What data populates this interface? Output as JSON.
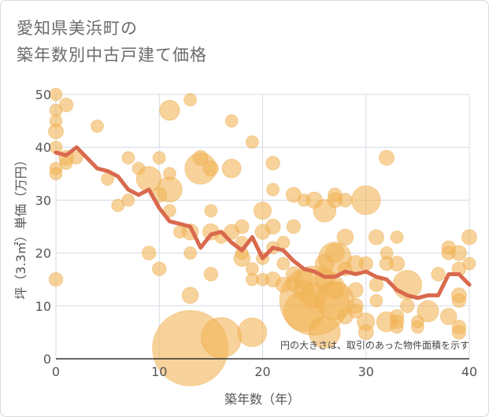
{
  "title_lines": [
    "愛知県美浜町の",
    "築年数別中古戸建て価格"
  ],
  "chart_data": {
    "type": "scatter",
    "xlabel": "築年数（年）",
    "ylabel": "坪（3.3㎡）単価（万円）",
    "xlim": [
      0,
      40
    ],
    "ylim": [
      0,
      50
    ],
    "xticks": [
      0,
      10,
      20,
      30,
      40
    ],
    "yticks": [
      0,
      10,
      20,
      30,
      40,
      50
    ],
    "grid": true,
    "annotation": "円の大きさは、取引のあった物件面積を示す",
    "colors": {
      "bubble": "#f2b457",
      "line": "#d9694d",
      "grid": "#d5dbe6"
    },
    "bubbles": [
      [
        0,
        50,
        1
      ],
      [
        0,
        47,
        1
      ],
      [
        0,
        45,
        1
      ],
      [
        0,
        43,
        1.2
      ],
      [
        0,
        40,
        1
      ],
      [
        0,
        36,
        1
      ],
      [
        0,
        35,
        1
      ],
      [
        0,
        15,
        1.1
      ],
      [
        1,
        48,
        1.1
      ],
      [
        1,
        38,
        1.2
      ],
      [
        1,
        37,
        1
      ],
      [
        2,
        38,
        1
      ],
      [
        4,
        44,
        1
      ],
      [
        5,
        34,
        1
      ],
      [
        6,
        29,
        1
      ],
      [
        7,
        30,
        1
      ],
      [
        7,
        38,
        1
      ],
      [
        8,
        36,
        1
      ],
      [
        9,
        34,
        2
      ],
      [
        9,
        20,
        1.1
      ],
      [
        10,
        38,
        1
      ],
      [
        10,
        31,
        1.2
      ],
      [
        10,
        17,
        1.1
      ],
      [
        11,
        47,
        1.6
      ],
      [
        11,
        35,
        1
      ],
      [
        11,
        32,
        2
      ],
      [
        11,
        28,
        1
      ],
      [
        12,
        24,
        1
      ],
      [
        13,
        49,
        1
      ],
      [
        13,
        24,
        1.3
      ],
      [
        13,
        20,
        1
      ],
      [
        13,
        12,
        1.3
      ],
      [
        13,
        2,
        6
      ],
      [
        14,
        36,
        2.5
      ],
      [
        14,
        38,
        1.2
      ],
      [
        15,
        36,
        1.2
      ],
      [
        15,
        28,
        1
      ],
      [
        15,
        24,
        1.3
      ],
      [
        15,
        16,
        1.1
      ],
      [
        16,
        4,
        3.2
      ],
      [
        16,
        23,
        1
      ],
      [
        17,
        45,
        1
      ],
      [
        17,
        36,
        1.5
      ],
      [
        17,
        24,
        1.2
      ],
      [
        18,
        19,
        1.3
      ],
      [
        18,
        22,
        1
      ],
      [
        18,
        20,
        1
      ],
      [
        18,
        25,
        1.1
      ],
      [
        19,
        41,
        1
      ],
      [
        19,
        15,
        1
      ],
      [
        19,
        17,
        1
      ],
      [
        19,
        5,
        2.3
      ],
      [
        20,
        28,
        1.4
      ],
      [
        20,
        24,
        1.2
      ],
      [
        20,
        19,
        1
      ],
      [
        20,
        15,
        1
      ],
      [
        21,
        37,
        1.1
      ],
      [
        21,
        32,
        1
      ],
      [
        21,
        25,
        1.2
      ],
      [
        21,
        21,
        1
      ],
      [
        21,
        15,
        1.2
      ],
      [
        22,
        22,
        1
      ],
      [
        22,
        18,
        1
      ],
      [
        22,
        14,
        1.2
      ],
      [
        23,
        31,
        1.2
      ],
      [
        23,
        25,
        1.1
      ],
      [
        23,
        16,
        1.2
      ],
      [
        23,
        14,
        1.1
      ],
      [
        24,
        30,
        1
      ],
      [
        24,
        15,
        1.5
      ],
      [
        24,
        13,
        1.6
      ],
      [
        24,
        9,
        3.2
      ],
      [
        25,
        11,
        5.5
      ],
      [
        25,
        12,
        2
      ],
      [
        25,
        30,
        1.3
      ],
      [
        26,
        28,
        1.8
      ],
      [
        26,
        18,
        1.5
      ],
      [
        26,
        15,
        1.6
      ],
      [
        26,
        5,
        2.5
      ],
      [
        27,
        19,
        2.6
      ],
      [
        27,
        20,
        1.5
      ],
      [
        27,
        30,
        1.2
      ],
      [
        27,
        11,
        3
      ],
      [
        27,
        31,
        1.1
      ],
      [
        27,
        13,
        1.3
      ],
      [
        28,
        30,
        1.1
      ],
      [
        28,
        23,
        1.3
      ],
      [
        28,
        17,
        1.1
      ],
      [
        28,
        8,
        1.2
      ],
      [
        29,
        18,
        1.3
      ],
      [
        29,
        13,
        1.2
      ],
      [
        29,
        10,
        1.2
      ],
      [
        29,
        9,
        1.1
      ],
      [
        30,
        30,
        2.3
      ],
      [
        30,
        18,
        1.1
      ],
      [
        30,
        7,
        1.4
      ],
      [
        30,
        5,
        1.2
      ],
      [
        31,
        23,
        1.2
      ],
      [
        31,
        14,
        1.1
      ],
      [
        31,
        11,
        1
      ],
      [
        32,
        38,
        1.2
      ],
      [
        32,
        20,
        1
      ],
      [
        32,
        18,
        1.1
      ],
      [
        32,
        7,
        1.6
      ],
      [
        33,
        23,
        1
      ],
      [
        33,
        18,
        1.2
      ],
      [
        33,
        8,
        1.1
      ],
      [
        33,
        7,
        1.1
      ],
      [
        33,
        6,
        1
      ],
      [
        34,
        14,
        2.3
      ],
      [
        34,
        10,
        1.1
      ],
      [
        35,
        7,
        1
      ],
      [
        35,
        6,
        1
      ],
      [
        36,
        9,
        1.7
      ],
      [
        37,
        16,
        1.1
      ],
      [
        38,
        20,
        1.1
      ],
      [
        38,
        8,
        1.3
      ],
      [
        38,
        21,
        1.1
      ],
      [
        39,
        20,
        1.2
      ],
      [
        39,
        17,
        1.1
      ],
      [
        39,
        12,
        1.2
      ],
      [
        39,
        11,
        1.1
      ],
      [
        39,
        6,
        1.1
      ],
      [
        39,
        5,
        1.1
      ],
      [
        40,
        23,
        1.2
      ],
      [
        40,
        18,
        1
      ]
    ],
    "line": {
      "x": [
        0,
        1,
        2,
        3,
        4,
        5,
        6,
        7,
        8,
        9,
        10,
        11,
        12,
        13,
        14,
        15,
        16,
        17,
        18,
        19,
        20,
        21,
        22,
        23,
        24,
        25,
        26,
        27,
        28,
        29,
        30,
        31,
        32,
        33,
        34,
        35,
        36,
        37,
        38,
        39,
        40
      ],
      "y": [
        39,
        38.5,
        40,
        38,
        36,
        35.5,
        34.5,
        32,
        31,
        32,
        28.5,
        26,
        25.5,
        25,
        21,
        23.5,
        24,
        22,
        20.5,
        23,
        19,
        21,
        20.5,
        18.5,
        17,
        16.5,
        15.5,
        15.5,
        16.5,
        16,
        16.5,
        15.5,
        15,
        13,
        12,
        11.5,
        12,
        12,
        16,
        16,
        14
      ]
    }
  }
}
